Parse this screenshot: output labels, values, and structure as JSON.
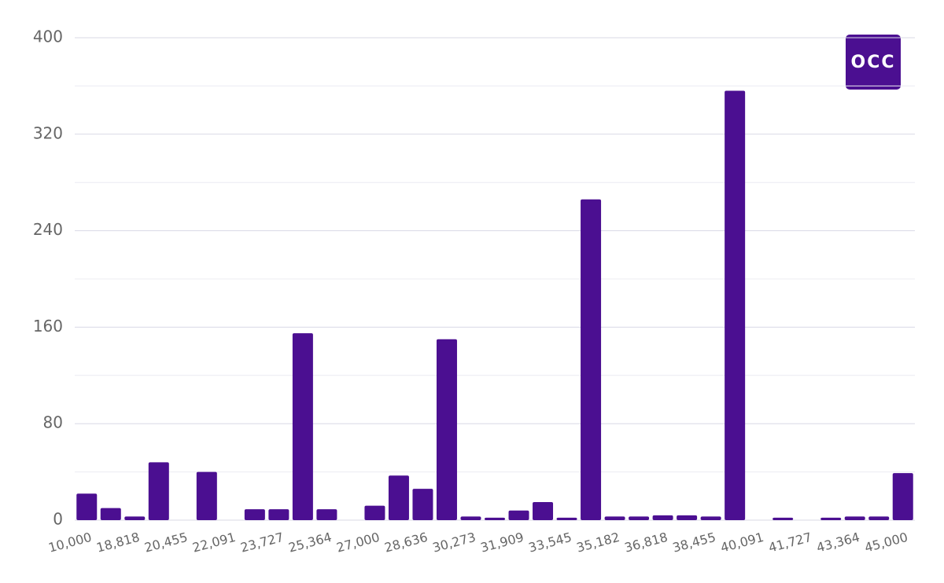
{
  "chart_data": {
    "type": "bar",
    "logo": "OCC",
    "categories": [
      "10,000",
      null,
      "18,818",
      null,
      "20,455",
      null,
      "22,091",
      null,
      "23,727",
      null,
      "25,364",
      null,
      "27,000",
      null,
      "28,636",
      null,
      "30,273",
      null,
      "31,909",
      null,
      "33,545",
      null,
      "35,182",
      null,
      "36,818",
      null,
      "38,455",
      null,
      "40,091",
      null,
      "41,727",
      null,
      "43,364",
      null,
      "45,000"
    ],
    "values": [
      22,
      10,
      3,
      48,
      0,
      40,
      0,
      9,
      9,
      155,
      9,
      0,
      12,
      37,
      26,
      150,
      3,
      2,
      8,
      15,
      2,
      266,
      3,
      3,
      4,
      4,
      3,
      356,
      0,
      2,
      0,
      2,
      3,
      3,
      39
    ],
    "color": "#4b0f91",
    "ylim": [
      0,
      400
    ],
    "yticks": [
      0,
      80,
      160,
      240,
      320,
      400
    ],
    "minor_grid": [
      40,
      120,
      200,
      280,
      360
    ],
    "grid": true
  }
}
